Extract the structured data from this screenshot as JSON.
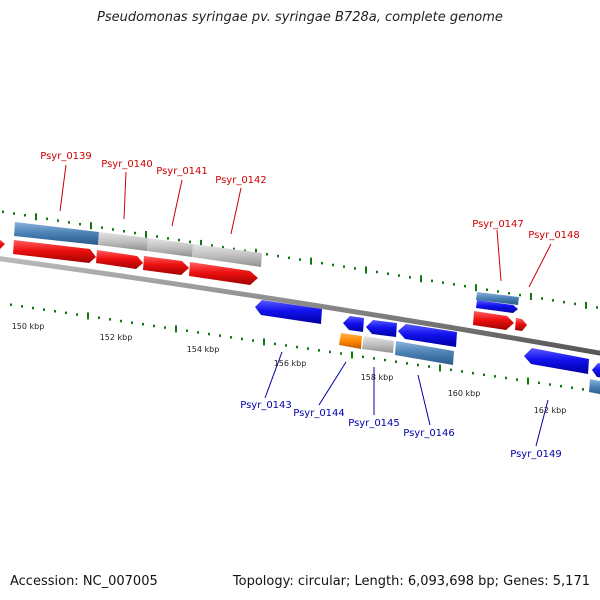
{
  "header": {
    "title": "Pseudomonas syringae pv. syringae B728a, complete genome"
  },
  "footer": {
    "accession": "Accession: NC_007005",
    "summary": "Topology: circular; Length: 6,093,698 bp; Genes: 5,171"
  },
  "scale": {
    "ticks": [
      "150 kbp",
      "152 kbp",
      "154 kbp",
      "156 kbp",
      "158 kbp",
      "160 kbp",
      "162 kbp"
    ]
  },
  "genes": {
    "forward": [
      "Psyr_0139",
      "Psyr_0140",
      "Psyr_0141",
      "Psyr_0142",
      "Psyr_0147",
      "Psyr_0148"
    ],
    "reverse": [
      "Psyr_0143",
      "Psyr_0144",
      "Psyr_0145",
      "Psyr_0146",
      "Psyr_0149"
    ]
  },
  "colors": {
    "forward_cds": "#ee1111",
    "reverse_cds": "#1111ee",
    "steelblue_feature": "#4a80b4",
    "grey_feature": "#c0c0c0",
    "orange_feature": "#ff8800",
    "tick_green": "#117711",
    "forward_label": "#cc0000",
    "reverse_label": "#0000aa"
  }
}
